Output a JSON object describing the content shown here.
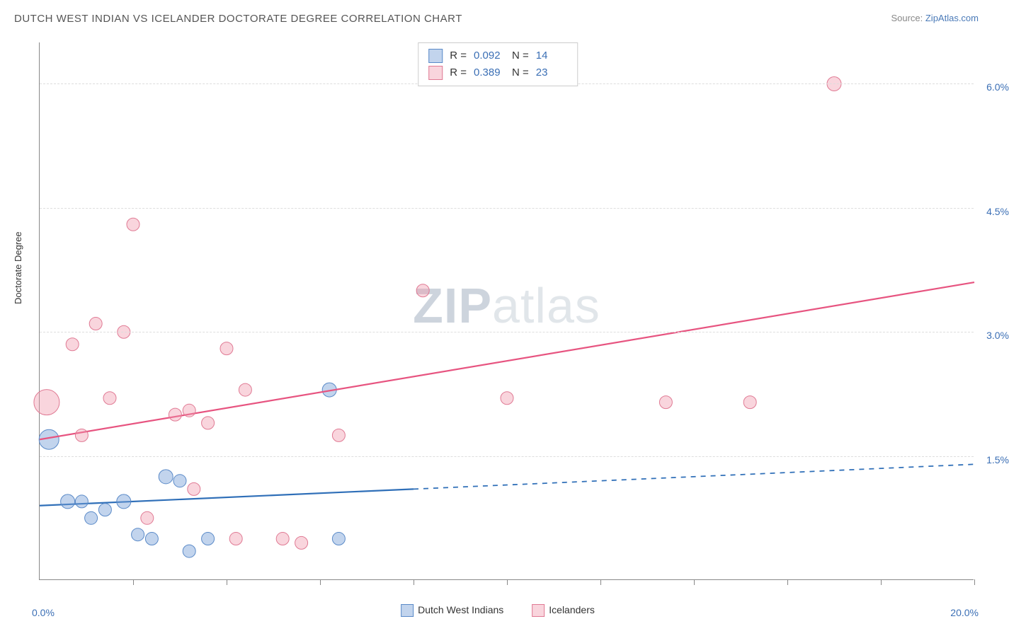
{
  "title": "DUTCH WEST INDIAN VS ICELANDER DOCTORATE DEGREE CORRELATION CHART",
  "source_prefix": "Source: ",
  "source_name": "ZipAtlas.com",
  "y_axis_label": "Doctorate Degree",
  "watermark_bold": "ZIP",
  "watermark_rest": "atlas",
  "chart": {
    "type": "scatter",
    "xlim": [
      0.0,
      20.0
    ],
    "ylim": [
      0.0,
      6.5
    ],
    "x_min_label": "0.0%",
    "x_max_label": "20.0%",
    "x_ticks": [
      2.0,
      4.0,
      6.0,
      8.0,
      10.0,
      12.0,
      14.0,
      16.0,
      18.0,
      20.0
    ],
    "y_gridlines": [
      1.5,
      3.0,
      4.5,
      6.0
    ],
    "y_tick_labels": [
      "1.5%",
      "3.0%",
      "4.5%",
      "6.0%"
    ],
    "background_color": "#ffffff",
    "grid_color": "#dddddd",
    "axis_color": "#888888",
    "label_color": "#3b6fb5",
    "series": [
      {
        "name": "Dutch West Indians",
        "fill": "rgba(120,160,215,0.45)",
        "stroke": "#5a8ac8",
        "line_color": "#2f6fb8",
        "line_width": 2.2,
        "R": "0.092",
        "N": "14",
        "trend": {
          "x1": 0.0,
          "y1": 0.9,
          "x2": 20.0,
          "y2": 1.4,
          "solid_until_x": 8.0
        },
        "points": [
          {
            "x": 0.2,
            "y": 1.7,
            "r": 14
          },
          {
            "x": 0.6,
            "y": 0.95,
            "r": 10
          },
          {
            "x": 0.9,
            "y": 0.95,
            "r": 9
          },
          {
            "x": 1.1,
            "y": 0.75,
            "r": 9
          },
          {
            "x": 1.4,
            "y": 0.85,
            "r": 9
          },
          {
            "x": 1.8,
            "y": 0.95,
            "r": 10
          },
          {
            "x": 2.1,
            "y": 0.55,
            "r": 9
          },
          {
            "x": 2.4,
            "y": 0.5,
            "r": 9
          },
          {
            "x": 2.7,
            "y": 1.25,
            "r": 10
          },
          {
            "x": 3.0,
            "y": 1.2,
            "r": 9
          },
          {
            "x": 3.2,
            "y": 0.35,
            "r": 9
          },
          {
            "x": 3.6,
            "y": 0.5,
            "r": 9
          },
          {
            "x": 6.4,
            "y": 0.5,
            "r": 9
          },
          {
            "x": 6.2,
            "y": 2.3,
            "r": 10
          }
        ]
      },
      {
        "name": "Icelanders",
        "fill": "rgba(240,150,170,0.40)",
        "stroke": "#e07a94",
        "line_color": "#e75480",
        "line_width": 2.2,
        "R": "0.389",
        "N": "23",
        "trend": {
          "x1": 0.0,
          "y1": 1.7,
          "x2": 20.0,
          "y2": 3.6,
          "solid_until_x": 20.0
        },
        "points": [
          {
            "x": 0.15,
            "y": 2.15,
            "r": 18
          },
          {
            "x": 0.7,
            "y": 2.85,
            "r": 9
          },
          {
            "x": 0.9,
            "y": 1.75,
            "r": 9
          },
          {
            "x": 1.2,
            "y": 3.1,
            "r": 9
          },
          {
            "x": 1.5,
            "y": 2.2,
            "r": 9
          },
          {
            "x": 1.8,
            "y": 3.0,
            "r": 9
          },
          {
            "x": 2.0,
            "y": 4.3,
            "r": 9
          },
          {
            "x": 2.3,
            "y": 0.75,
            "r": 9
          },
          {
            "x": 2.9,
            "y": 2.0,
            "r": 9
          },
          {
            "x": 3.2,
            "y": 2.05,
            "r": 9
          },
          {
            "x": 3.3,
            "y": 1.1,
            "r": 9
          },
          {
            "x": 3.6,
            "y": 1.9,
            "r": 9
          },
          {
            "x": 4.0,
            "y": 2.8,
            "r": 9
          },
          {
            "x": 4.4,
            "y": 2.3,
            "r": 9
          },
          {
            "x": 4.2,
            "y": 0.5,
            "r": 9
          },
          {
            "x": 5.2,
            "y": 0.5,
            "r": 9
          },
          {
            "x": 5.6,
            "y": 0.45,
            "r": 9
          },
          {
            "x": 6.4,
            "y": 1.75,
            "r": 9
          },
          {
            "x": 8.2,
            "y": 3.5,
            "r": 9
          },
          {
            "x": 10.0,
            "y": 2.2,
            "r": 9
          },
          {
            "x": 13.4,
            "y": 2.15,
            "r": 9
          },
          {
            "x": 15.2,
            "y": 2.15,
            "r": 9
          },
          {
            "x": 17.0,
            "y": 6.0,
            "r": 10
          }
        ]
      }
    ]
  }
}
